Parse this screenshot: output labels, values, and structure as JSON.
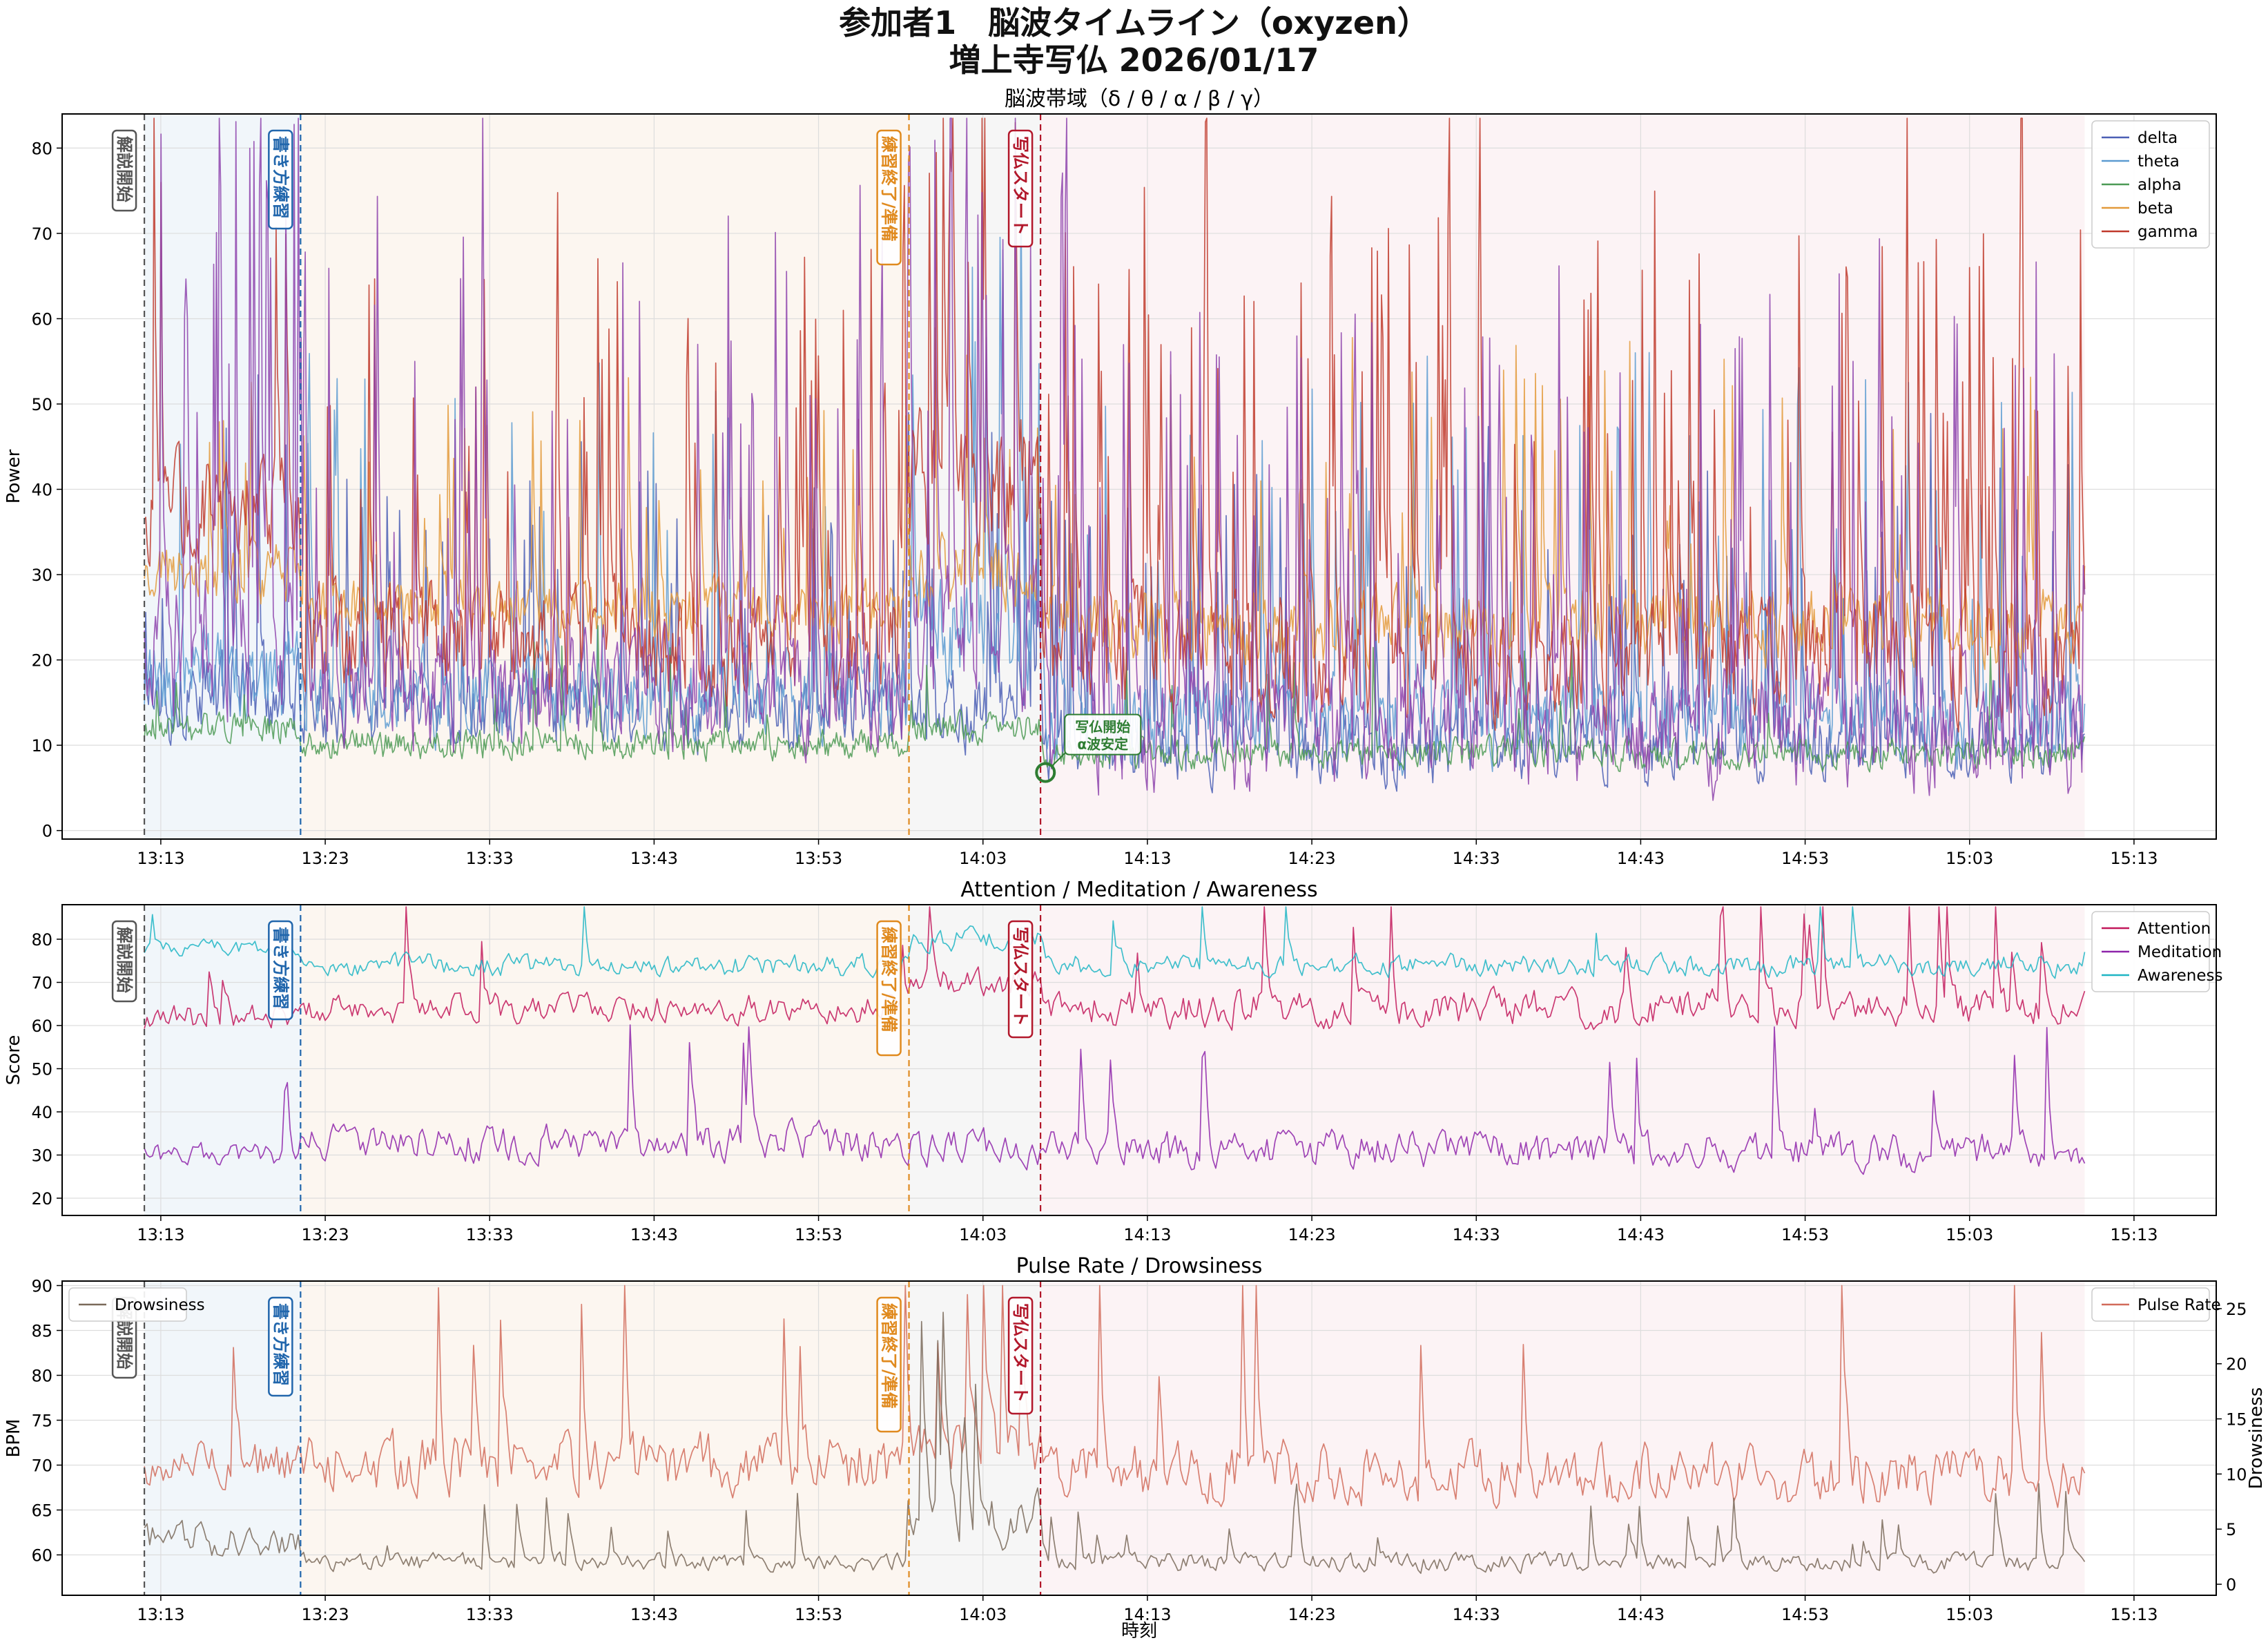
{
  "figure": {
    "title_line1": "参加者1　脳波タイムライン（oxyzen）",
    "title_line2": "増上寺写仏 2026/01/17",
    "xlabel": "時刻"
  },
  "phases": [
    {
      "label": "解説開始",
      "start": "13:12",
      "end": "13:21.5",
      "color": "#555555",
      "fill": "#d6e4f0"
    },
    {
      "label": "書き方練習",
      "start": "13:21.5",
      "end": "13:58.5",
      "color": "#2166ac",
      "fill": "#f5e6d3"
    },
    {
      "label": "練習終了/準備",
      "start": "13:58.5",
      "end": "14:06.5",
      "color": "#e08a1e",
      "fill": "#e6e6e6"
    },
    {
      "label": "写仏スタート",
      "start": "14:06.5",
      "end": "15:10",
      "color": "#b2182b",
      "fill": "#f6dde3"
    }
  ],
  "x_ticks": [
    "13:13",
    "13:23",
    "13:33",
    "13:43",
    "13:53",
    "14:03",
    "14:13",
    "14:23",
    "14:33",
    "14:43",
    "14:53",
    "15:03",
    "15:13"
  ],
  "chart_data": [
    {
      "type": "line",
      "title": "脳波帯域（δ / θ / α / β / γ）",
      "ylabel": "Power",
      "ylim": [
        -1,
        84
      ],
      "xlim": [
        "13:07",
        "15:18"
      ],
      "yticks": [
        0,
        10,
        20,
        30,
        40,
        50,
        60,
        70,
        80
      ],
      "legend_position": "top-right",
      "grid": true,
      "annotation": {
        "text_line1": "写仏開始",
        "text_line2": "α波安定",
        "time": "14:06.8",
        "value": 6.8,
        "color": "#2e7d32"
      },
      "series": [
        {
          "name": "delta",
          "color": "#4b5fb5",
          "profile": {
            "13:12": [
              16,
              6,
              0.06
            ],
            "13:21.5": [
              14,
              5,
              0.08
            ],
            "13:58.5": [
              14,
              5,
              0.07
            ],
            "14:06.5": [
              10,
              5,
              0.08
            ],
            "15:10": [
              10,
              5,
              0.08
            ]
          }
        },
        {
          "name": "theta",
          "color": "#5c9bd1",
          "profile": {
            "13:12": [
              18,
              6,
              0.05
            ],
            "13:21.5": [
              16,
              6,
              0.06
            ],
            "13:58.5": [
              24,
              8,
              0.07
            ],
            "14:06.5": [
              13,
              6,
              0.07
            ],
            "15:10": [
              13,
              6,
              0.07
            ]
          }
        },
        {
          "name": "alpha",
          "color": "#4c9a55",
          "profile": {
            "13:12": [
              12,
              2,
              0.02
            ],
            "13:21.5": [
              10,
              2,
              0.02
            ],
            "13:58.5": [
              12,
              2,
              0.02
            ],
            "14:06.5": [
              9,
              2,
              0.02
            ],
            "15:10": [
              11,
              2,
              0.02
            ]
          }
        },
        {
          "name": "beta",
          "color": "#e39a3b",
          "profile": {
            "13:12": [
              30,
              4,
              0.04
            ],
            "13:21.5": [
              26,
              4,
              0.05
            ],
            "13:58.5": [
              30,
              5,
              0.05
            ],
            "14:06.5": [
              24,
              5,
              0.05
            ],
            "15:10": [
              28,
              5,
              0.05
            ]
          }
        },
        {
          "name": "gamma",
          "color": "#c0392b",
          "profile": {
            "13:12": [
              38,
              7,
              0.08
            ],
            "13:21.5": [
              22,
              7,
              0.12
            ],
            "13:58.5": [
              40,
              10,
              0.14
            ],
            "14:06.5": [
              20,
              8,
              0.12
            ],
            "15:10": [
              24,
              9,
              0.13
            ]
          }
        },
        {
          "name": "",
          "color": "#8e44ad",
          "profile": {
            "13:12": [
              20,
              10,
              0.12
            ],
            "13:21.5": [
              16,
              8,
              0.1
            ],
            "13:58.5": [
              22,
              10,
              0.12
            ],
            "14:06.5": [
              12,
              8,
              0.12
            ],
            "15:10": [
              18,
              10,
              0.14
            ]
          }
        }
      ]
    },
    {
      "type": "line",
      "title": "Attention / Meditation / Awareness",
      "ylabel": "Score",
      "ylim": [
        16,
        88
      ],
      "xlim": [
        "13:07",
        "15:18"
      ],
      "yticks": [
        20,
        30,
        40,
        50,
        60,
        70,
        80
      ],
      "legend_position": "top-right",
      "grid": true,
      "series": [
        {
          "name": "Attention",
          "color": "#c2185b",
          "profile": {
            "13:12": [
              62,
              4,
              0.02
            ],
            "13:21.5": [
              64,
              4,
              0.02
            ],
            "13:58.5": [
              70,
              4,
              0.02
            ],
            "14:06.5": [
              64,
              5,
              0.04
            ],
            "15:10": [
              65,
              4,
              0.03
            ]
          }
        },
        {
          "name": "Meditation",
          "color": "#8e24aa",
          "profile": {
            "13:12": [
              30,
              3,
              0.02
            ],
            "13:21.5": [
              33,
              5,
              0.02
            ],
            "13:58.5": [
              32,
              5,
              0.02
            ],
            "14:06.5": [
              31,
              5,
              0.03
            ],
            "15:10": [
              32,
              5,
              0.03
            ]
          }
        },
        {
          "name": "Awareness",
          "color": "#1fb5c4",
          "profile": {
            "13:12": [
              78,
              2,
              0.01
            ],
            "13:21.5": [
              74,
              3,
              0.01
            ],
            "13:58.5": [
              80,
              3,
              0.01
            ],
            "14:06.5": [
              74,
              3,
              0.01
            ],
            "15:10": [
              76,
              3,
              0.01
            ]
          }
        }
      ]
    },
    {
      "type": "line",
      "title": "Pulse Rate / Drowsiness",
      "ylabel": "BPM",
      "ylabel_right": "Drowsiness",
      "ylim": [
        55.5,
        90.5
      ],
      "ylim_right": [
        -1,
        27.5
      ],
      "xlim": [
        "13:07",
        "15:18"
      ],
      "yticks": [
        60,
        65,
        70,
        75,
        80,
        85,
        90
      ],
      "yticks_right": [
        0,
        5,
        10,
        15,
        20,
        25
      ],
      "legend_left": "top-left",
      "legend_right": "top-right",
      "grid": true,
      "series": [
        {
          "name": "Pulse Rate",
          "axis": "left",
          "color": "#d16b5a",
          "profile": {
            "13:12": [
              70,
              3,
              0.03
            ],
            "13:21.5": [
              70,
              4,
              0.04
            ],
            "13:58.5": [
              72,
              4,
              0.04
            ],
            "14:06.5": [
              69,
              4,
              0.03
            ],
            "15:10": [
              70,
              4,
              0.04
            ]
          }
        },
        {
          "name": "Drowsiness",
          "axis": "right",
          "color": "#7a6a5a",
          "profile": {
            "13:12": [
              4,
              2,
              0.1
            ],
            "13:21.5": [
              2,
              1,
              0.06
            ],
            "13:58.5": [
              6,
              3,
              0.08
            ],
            "14:06.5": [
              2,
              1,
              0.05
            ],
            "15:10": [
              2,
              1,
              0.05
            ]
          }
        }
      ]
    }
  ]
}
